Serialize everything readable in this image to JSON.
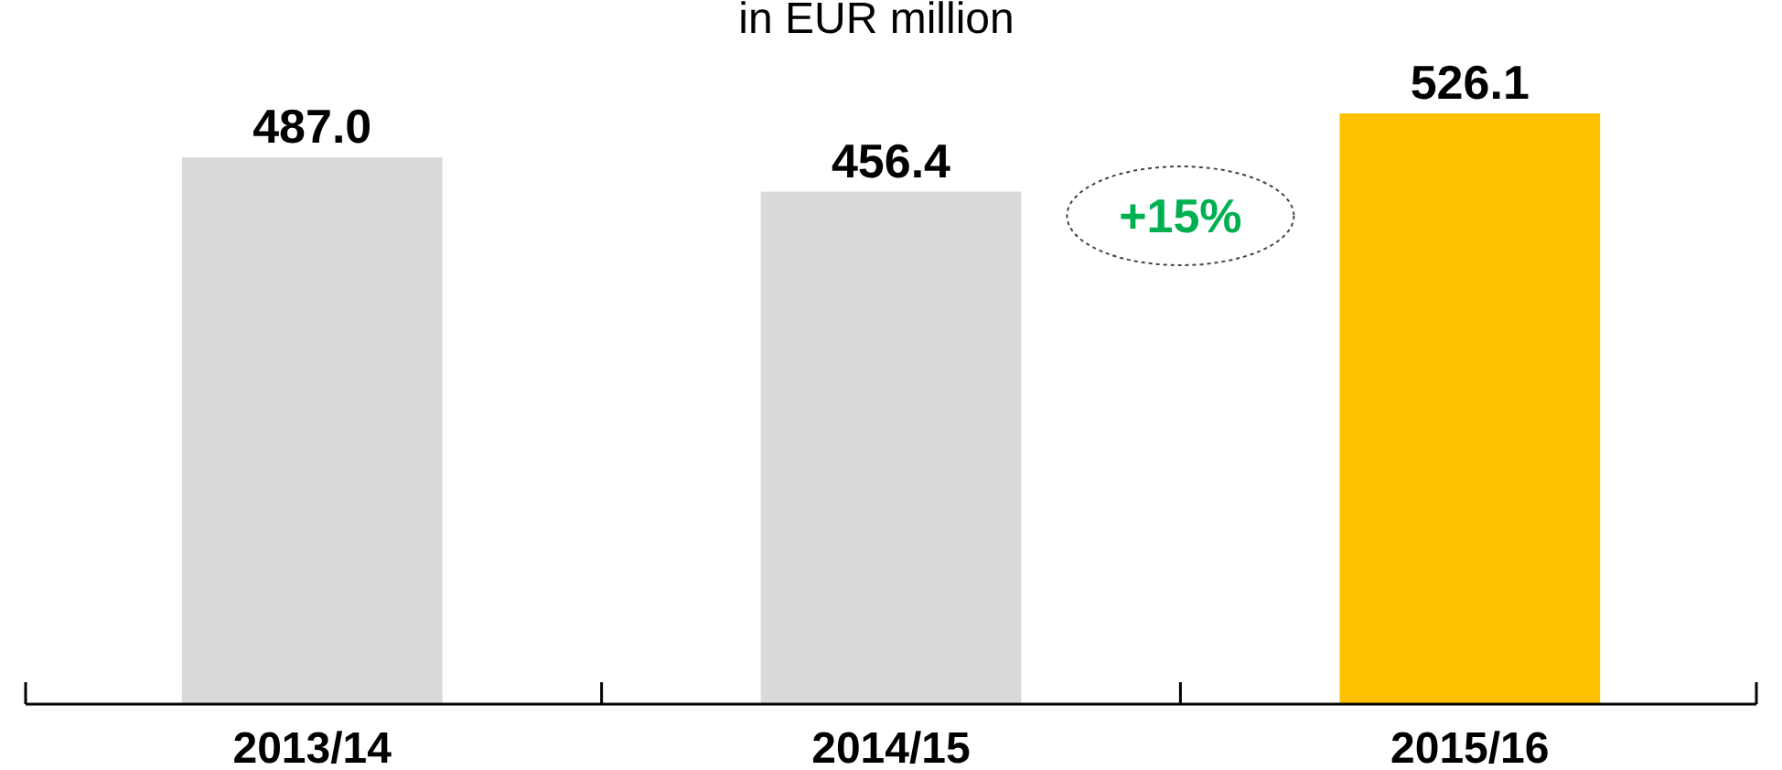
{
  "chart_data": {
    "type": "bar",
    "subtitle": "in EUR million",
    "categories": [
      "2013/14",
      "2014/15",
      "2015/16"
    ],
    "values": [
      487.0,
      456.4,
      526.1
    ],
    "colors": [
      "#d9d9d9",
      "#d9d9d9",
      "#ffc000"
    ],
    "value_labels": [
      "487.0",
      "456.4",
      "526.1"
    ],
    "annotations": [
      "+15%"
    ]
  }
}
